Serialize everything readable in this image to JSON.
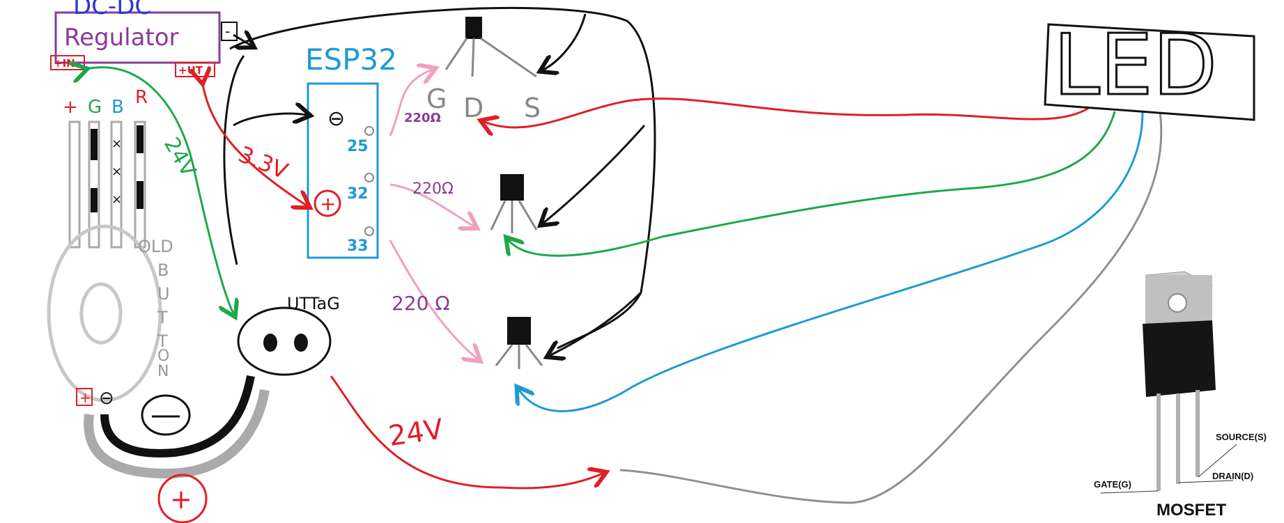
{
  "regulator": {
    "title_line1": "DC-DC",
    "title_line2": "Regulator",
    "in_label": "+IN",
    "out_label": "+UT",
    "minus_label": "-"
  },
  "esp32": {
    "title": "ESP32",
    "minus_symbol": "⊖",
    "plus_symbol": "+",
    "pins": [
      "25",
      "32",
      "33"
    ]
  },
  "mosfet_top": {
    "g": "G",
    "d": "D",
    "s": "S"
  },
  "resistors": [
    "220Ω",
    "220Ω",
    "220 Ω"
  ],
  "voltages": {
    "v24_green": "24V",
    "v33": "3.3V",
    "v24_red": "24V"
  },
  "strip_labels": {
    "plus": "+",
    "g": "G",
    "b": "B",
    "r": "R"
  },
  "old_button_letters": [
    "OLD",
    "B",
    "U",
    "T",
    "T",
    "O",
    "N"
  ],
  "uttag": "UTTaG",
  "button_plus": "+",
  "button_minus": "⊖",
  "led": "LED",
  "mosfet_ref": {
    "title": "MOSFET",
    "source": "SOURCE(S)",
    "drain": "DRAIN(D)",
    "gate": "GATE(G)"
  },
  "colors": {
    "red": "#e01e26",
    "green": "#1ea84a",
    "blue": "#1e9ad6",
    "pink": "#f0a0c0",
    "purple": "#8a3a9a",
    "gray": "#909090",
    "black": "#111111"
  }
}
